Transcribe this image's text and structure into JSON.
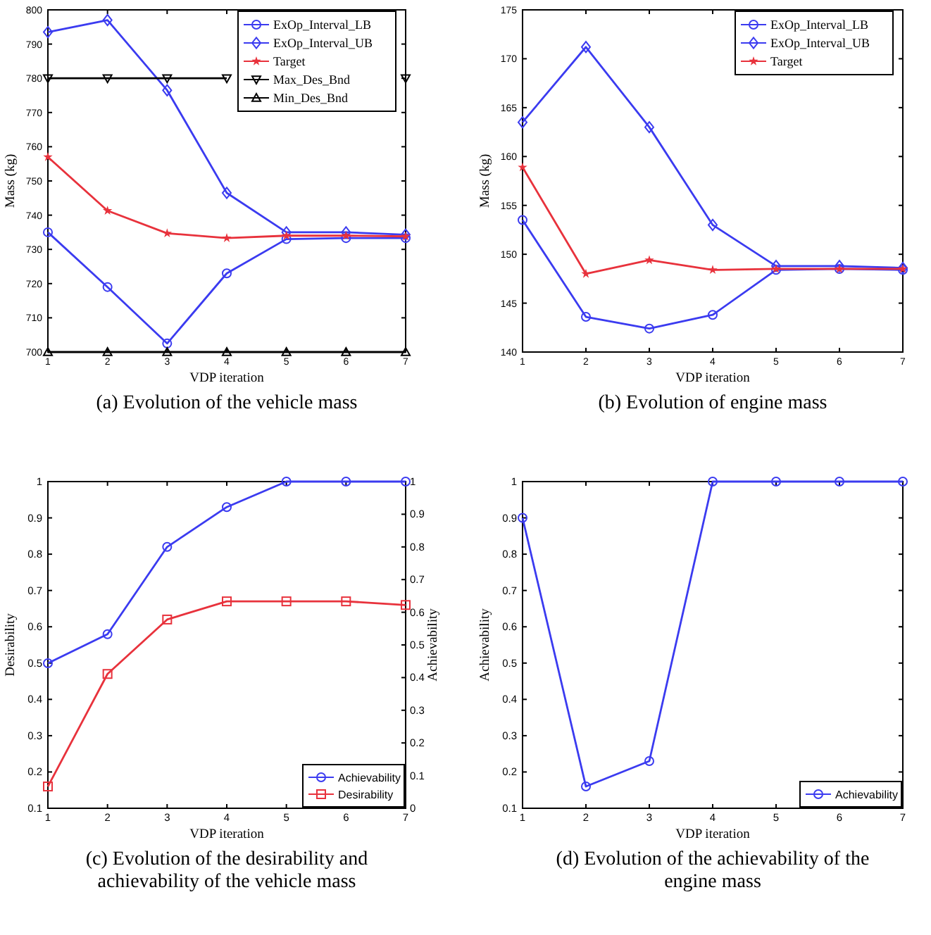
{
  "chart_data": [
    {
      "type": "line",
      "xlabel": "VDP iteration",
      "ylabel": "Mass (kg)",
      "x": [
        1,
        2,
        3,
        4,
        5,
        6,
        7
      ],
      "xlim": [
        1,
        7
      ],
      "xticks": [
        1,
        2,
        3,
        4,
        5,
        6,
        7
      ],
      "ylim": [
        700,
        800
      ],
      "yticks": [
        700,
        710,
        720,
        730,
        740,
        750,
        760,
        770,
        780,
        790,
        800
      ],
      "legend": "top right",
      "line_style": "solid",
      "annotations": [
        "(a) Evolution of the vehicle mass"
      ],
      "series": [
        {
          "name": "ExOp_Interval_LB",
          "color": "#3b3bf0",
          "marker": "circle",
          "values": [
            735,
            719,
            702.5,
            723,
            733,
            733.3,
            733.3
          ]
        },
        {
          "name": "ExOp_Interval_UB",
          "color": "#3b3bf0",
          "marker": "diamond",
          "values": [
            793.5,
            797,
            776.5,
            746.5,
            735,
            735,
            734.3
          ]
        },
        {
          "name": "Target",
          "color": "#e8323c",
          "marker": "star",
          "values": [
            757,
            741.3,
            734.7,
            733.3,
            734,
            734,
            733.8
          ]
        },
        {
          "name": "Max_Des_Bnd",
          "color": "#000000",
          "marker": "triangle-down",
          "values": [
            780,
            780,
            780,
            780,
            null,
            null,
            780
          ]
        },
        {
          "name": "Min_Des_Bnd",
          "color": "#000000",
          "marker": "triangle",
          "values": [
            700,
            700,
            700,
            700,
            700,
            700,
            700
          ]
        }
      ]
    },
    {
      "type": "line",
      "xlabel": "VDP iteration",
      "ylabel": "Mass (kg)",
      "x": [
        1,
        2,
        3,
        4,
        5,
        6,
        7
      ],
      "xlim": [
        1,
        7
      ],
      "xticks": [
        1,
        2,
        3,
        4,
        5,
        6,
        7
      ],
      "ylim": [
        140,
        175
      ],
      "yticks": [
        140,
        145,
        150,
        155,
        160,
        165,
        170,
        175
      ],
      "legend": "top right",
      "line_style": "solid",
      "annotations": [
        "(b) Evolution of engine mass"
      ],
      "series": [
        {
          "name": "ExOp_Interval_LB",
          "color": "#3b3bf0",
          "marker": "circle",
          "values": [
            153.5,
            143.6,
            142.4,
            143.8,
            148.4,
            148.5,
            148.4
          ]
        },
        {
          "name": "ExOp_Interval_UB",
          "color": "#3b3bf0",
          "marker": "diamond",
          "values": [
            163.5,
            171.2,
            163,
            153,
            148.8,
            148.8,
            148.6
          ]
        },
        {
          "name": "Target",
          "color": "#e8323c",
          "marker": "star",
          "values": [
            158.9,
            148,
            149.4,
            148.4,
            148.5,
            148.5,
            148.5
          ]
        }
      ]
    },
    {
      "type": "line",
      "xlabel": "VDP iteration",
      "ylabel": "Desirability",
      "y2label": "Achievability",
      "x": [
        1,
        2,
        3,
        4,
        5,
        6,
        7
      ],
      "xlim": [
        1,
        7
      ],
      "xticks": [
        1,
        2,
        3,
        4,
        5,
        6,
        7
      ],
      "ylim": [
        0.1,
        1
      ],
      "yticks": [
        0.1,
        0.2,
        0.3,
        0.4,
        0.5,
        0.6,
        0.7,
        0.8,
        0.9,
        1
      ],
      "y2lim": [
        0,
        1
      ],
      "y2ticks": [
        0,
        0.1,
        0.2,
        0.3,
        0.4,
        0.5,
        0.6,
        0.7,
        0.8,
        0.9,
        1
      ],
      "legend": "bottom right",
      "line_style": "solid",
      "annotations": [
        "(c) Evolution of the desirability and achievability of the vehicle mass"
      ],
      "series": [
        {
          "name": "Achievability",
          "color": "#3b3bf0",
          "marker": "circle",
          "axis": "y2",
          "values": [
            0.444,
            0.533,
            0.8,
            0.922,
            1,
            1,
            1
          ]
        },
        {
          "name": "Desirability",
          "color": "#e8323c",
          "marker": "square",
          "values": [
            0.16,
            0.47,
            0.62,
            0.67,
            0.67,
            0.67,
            0.66
          ]
        }
      ]
    },
    {
      "type": "line",
      "xlabel": "VDP iteration",
      "ylabel": "Achievability",
      "x": [
        1,
        2,
        3,
        4,
        5,
        6,
        7
      ],
      "xlim": [
        1,
        7
      ],
      "xticks": [
        1,
        2,
        3,
        4,
        5,
        6,
        7
      ],
      "ylim": [
        0.1,
        1
      ],
      "yticks": [
        0.1,
        0.2,
        0.3,
        0.4,
        0.5,
        0.6,
        0.7,
        0.8,
        0.9,
        1
      ],
      "legend": "bottom right",
      "line_style": "solid",
      "annotations": [
        "(d) Evolution of the achievability of the engine mass"
      ],
      "series": [
        {
          "name": "Achievability",
          "color": "#3b3bf0",
          "marker": "circle",
          "values": [
            0.9,
            0.16,
            0.23,
            1,
            1,
            1,
            1
          ]
        }
      ]
    }
  ]
}
